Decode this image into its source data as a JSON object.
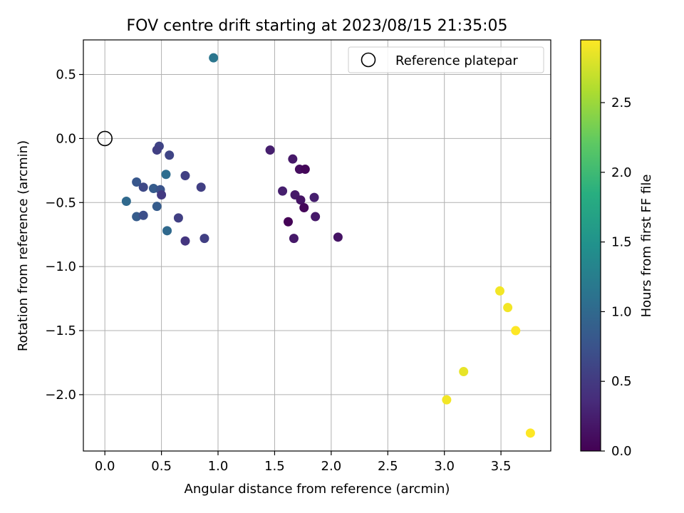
{
  "chart_data": {
    "type": "scatter",
    "title": "FOV centre drift starting at 2023/08/15 21:35:05",
    "xlabel": "Angular distance from reference (arcmin)",
    "ylabel": "Rotation from reference (arcmin)",
    "xlim": [
      -0.19,
      3.94
    ],
    "ylim": [
      -2.44,
      0.77
    ],
    "xticks": [
      0.0,
      0.5,
      1.0,
      1.5,
      2.0,
      2.5,
      3.0,
      3.5
    ],
    "xtick_labels": [
      "0.0",
      "0.5",
      "1.0",
      "1.5",
      "2.0",
      "2.5",
      "3.0",
      "3.5"
    ],
    "yticks": [
      0.5,
      0.0,
      -0.5,
      -1.0,
      -1.5,
      -2.0
    ],
    "ytick_labels": [
      "0.5",
      "0.0",
      "−0.5",
      "−1.0",
      "−1.5",
      "−2.0"
    ],
    "grid": true,
    "legend": {
      "placement": "top-right",
      "entries": [
        "Reference platepar"
      ]
    },
    "reference_point": {
      "x": 0.0,
      "y": 0.0
    },
    "colorbar": {
      "label": "Hours from first FF file",
      "colormap": "viridis",
      "range": [
        0.0,
        2.95
      ],
      "ticks": [
        0.0,
        0.5,
        1.0,
        1.5,
        2.0,
        2.5
      ],
      "tick_labels": [
        "0.0",
        "0.5",
        "1.0",
        "1.5",
        "2.0",
        "2.5"
      ]
    },
    "points": [
      {
        "x": 1.46,
        "y": -0.09,
        "c": 0.25
      },
      {
        "x": 1.66,
        "y": -0.16,
        "c": 0.2
      },
      {
        "x": 1.72,
        "y": -0.24,
        "c": 0.1
      },
      {
        "x": 1.77,
        "y": -0.24,
        "c": 0.05
      },
      {
        "x": 1.57,
        "y": -0.41,
        "c": 0.25
      },
      {
        "x": 1.68,
        "y": -0.44,
        "c": 0.2
      },
      {
        "x": 1.73,
        "y": -0.48,
        "c": 0.15
      },
      {
        "x": 1.85,
        "y": -0.46,
        "c": 0.25
      },
      {
        "x": 1.76,
        "y": -0.54,
        "c": 0.05
      },
      {
        "x": 1.62,
        "y": -0.65,
        "c": 0.02
      },
      {
        "x": 1.86,
        "y": -0.61,
        "c": 0.2
      },
      {
        "x": 1.67,
        "y": -0.78,
        "c": 0.2
      },
      {
        "x": 2.06,
        "y": -0.77,
        "c": 0.15
      },
      {
        "x": 0.96,
        "y": 0.63,
        "c": 1.15
      },
      {
        "x": 0.48,
        "y": -0.06,
        "c": 0.6
      },
      {
        "x": 0.46,
        "y": -0.09,
        "c": 0.55
      },
      {
        "x": 0.57,
        "y": -0.13,
        "c": 0.6
      },
      {
        "x": 0.54,
        "y": -0.28,
        "c": 1.05
      },
      {
        "x": 0.71,
        "y": -0.29,
        "c": 0.55
      },
      {
        "x": 0.28,
        "y": -0.34,
        "c": 0.8
      },
      {
        "x": 0.34,
        "y": -0.38,
        "c": 0.65
      },
      {
        "x": 0.43,
        "y": -0.39,
        "c": 0.85
      },
      {
        "x": 0.49,
        "y": -0.4,
        "c": 0.75
      },
      {
        "x": 0.85,
        "y": -0.38,
        "c": 0.55
      },
      {
        "x": 0.5,
        "y": -0.44,
        "c": 0.5
      },
      {
        "x": 0.19,
        "y": -0.49,
        "c": 1.0
      },
      {
        "x": 0.46,
        "y": -0.53,
        "c": 0.85
      },
      {
        "x": 0.28,
        "y": -0.61,
        "c": 0.85
      },
      {
        "x": 0.34,
        "y": -0.6,
        "c": 0.7
      },
      {
        "x": 0.65,
        "y": -0.62,
        "c": 0.55
      },
      {
        "x": 0.55,
        "y": -0.72,
        "c": 1.0
      },
      {
        "x": 0.71,
        "y": -0.8,
        "c": 0.45
      },
      {
        "x": 0.88,
        "y": -0.78,
        "c": 0.55
      },
      {
        "x": 3.49,
        "y": -1.19,
        "c": 2.9
      },
      {
        "x": 3.56,
        "y": -1.32,
        "c": 2.9
      },
      {
        "x": 3.63,
        "y": -1.5,
        "c": 2.95
      },
      {
        "x": 3.17,
        "y": -1.82,
        "c": 2.85
      },
      {
        "x": 3.02,
        "y": -2.04,
        "c": 2.9
      },
      {
        "x": 3.76,
        "y": -2.3,
        "c": 2.95
      }
    ]
  }
}
